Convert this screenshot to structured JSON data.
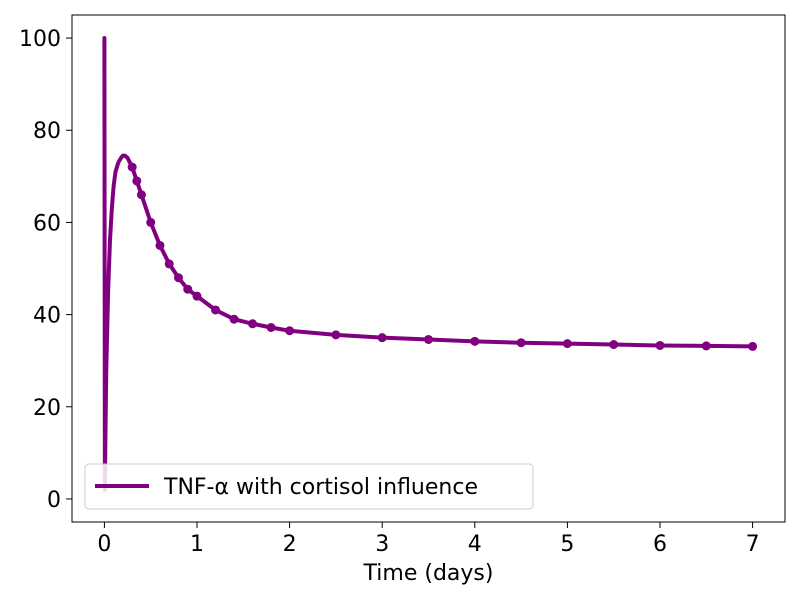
{
  "chart_data": {
    "type": "line",
    "title": "",
    "xlabel": "Time (days)",
    "ylabel": "",
    "xlim": [
      -0.35,
      7.35
    ],
    "ylim": [
      -5,
      105
    ],
    "xticks": [
      0,
      1,
      2,
      3,
      4,
      5,
      6,
      7
    ],
    "yticks": [
      0,
      20,
      40,
      60,
      80,
      100
    ],
    "grid": false,
    "legend_position": "lower-left",
    "series": [
      {
        "name": "TNF-α with cortisol influence",
        "color": "#800080",
        "x": [
          0,
          0.005,
          0.01,
          0.02,
          0.04,
          0.06,
          0.08,
          0.1,
          0.12,
          0.15,
          0.18,
          0.2,
          0.22,
          0.25,
          0.3,
          0.35,
          0.4,
          0.5,
          0.6,
          0.7,
          0.8,
          0.9,
          1.0,
          1.2,
          1.4,
          1.6,
          1.8,
          2.0,
          2.5,
          3.0,
          3.5,
          4.0,
          4.5,
          5.0,
          5.5,
          6.0,
          6.5,
          7.0
        ],
        "y": [
          100,
          2,
          12,
          28,
          45,
          56,
          63,
          68,
          71,
          73,
          74,
          74.5,
          74.5,
          74,
          72,
          69,
          66,
          60,
          55,
          51,
          48,
          45.5,
          44,
          41,
          39,
          38,
          37.2,
          36.5,
          35.6,
          35,
          34.6,
          34.2,
          33.9,
          33.7,
          33.5,
          33.3,
          33.2,
          33.1
        ]
      }
    ]
  }
}
